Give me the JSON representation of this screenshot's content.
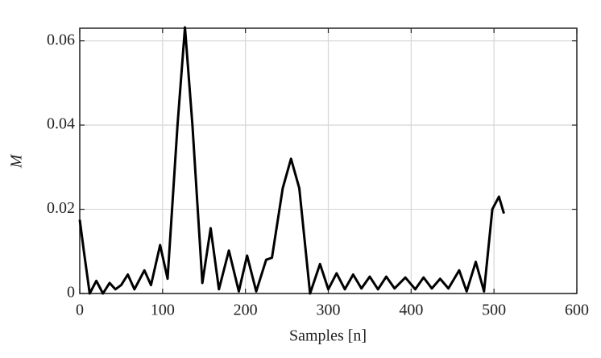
{
  "chart_data": {
    "type": "line",
    "xlabel": "Samples [n]",
    "ylabel": "M",
    "x": [
      0,
      5,
      12,
      20,
      28,
      36,
      43,
      50,
      58,
      66,
      78,
      86,
      97,
      106,
      118,
      127,
      136,
      148,
      158,
      168,
      180,
      192,
      202,
      213,
      225,
      232,
      245,
      255,
      265,
      278,
      290,
      300,
      310,
      320,
      330,
      340,
      350,
      360,
      370,
      380,
      393,
      405,
      415,
      425,
      435,
      445,
      458,
      467,
      478,
      488,
      498,
      506,
      512
    ],
    "series": [
      {
        "color": "#000000",
        "values": [
          0.0175,
          0.01,
          0.0,
          0.003,
          0.0,
          0.0025,
          0.001,
          0.002,
          0.0045,
          0.001,
          0.0055,
          0.002,
          0.0115,
          0.0035,
          0.04,
          0.0632,
          0.04,
          0.0025,
          0.0155,
          0.001,
          0.0102,
          0.0005,
          0.009,
          0.0005,
          0.008,
          0.0085,
          0.025,
          0.032,
          0.025,
          0.0,
          0.007,
          0.001,
          0.0048,
          0.001,
          0.0045,
          0.0012,
          0.004,
          0.001,
          0.004,
          0.0012,
          0.0038,
          0.001,
          0.0038,
          0.0012,
          0.0035,
          0.0012,
          0.0055,
          0.0005,
          0.0075,
          0.0005,
          0.02,
          0.023,
          0.019
        ]
      }
    ],
    "xlim": [
      0,
      600
    ],
    "xticks": [
      0,
      100,
      200,
      300,
      400,
      500,
      600
    ],
    "ylim": [
      0,
      0.063
    ],
    "yticks": [
      0,
      0.02,
      0.04,
      0.06
    ],
    "grid": true
  }
}
